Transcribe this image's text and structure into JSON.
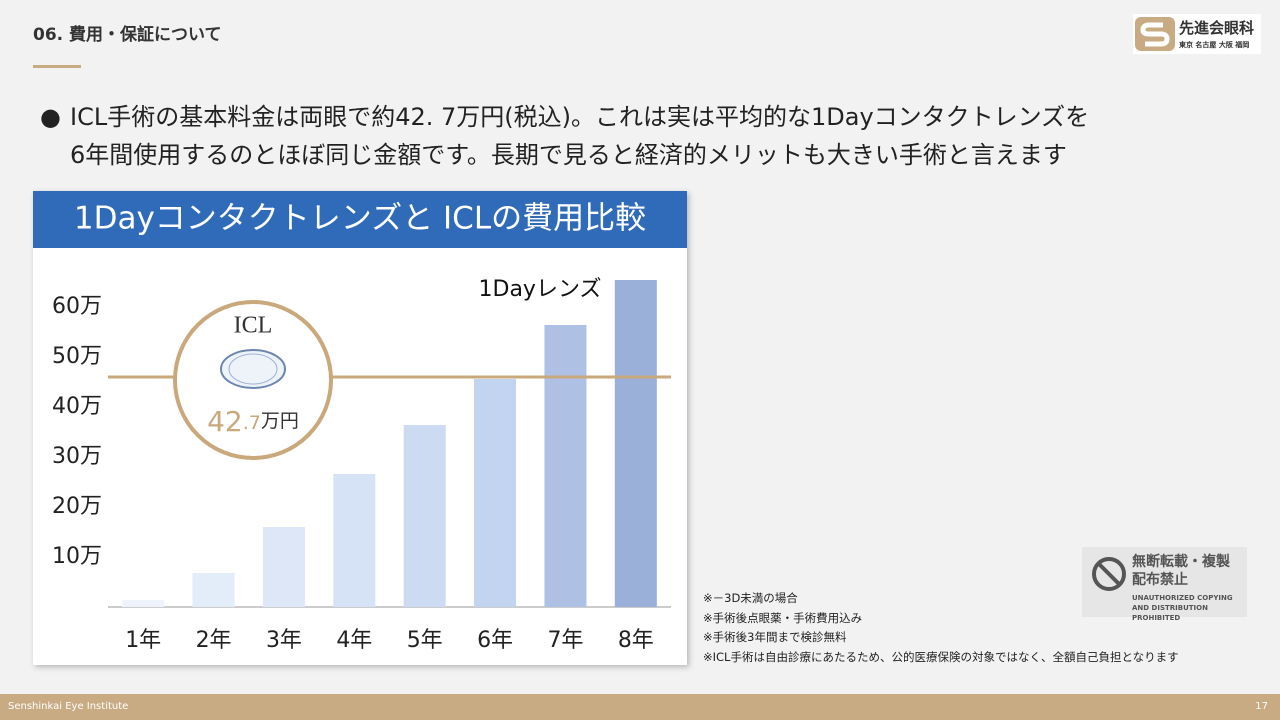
{
  "header": {
    "section": "06. 費用・保証について",
    "logo": "先進会眼科",
    "logo_sub": "東京 名古屋 大阪 福岡"
  },
  "body": {
    "lines": [
      "ICL手術の基本料金は両眼で約42. 7万円(税込)。これは実は平均的な1Dayコンタクトレンズを",
      "6年間使用するのとほぼ同じ金額です。長期で見ると経済的メリットも大きい手術と言えます"
    ]
  },
  "chart_data": {
    "type": "bar",
    "title": "1Dayコンタクトレンズと ICLの費用比較",
    "categories": [
      "1年",
      "2年",
      "3年",
      "4年",
      "5年",
      "6年",
      "7年",
      "8年"
    ],
    "series": [
      {
        "name": "1Dayレンズ",
        "values": [
          14000,
          68000,
          160000,
          266000,
          364000,
          456000,
          564000,
          654000
        ],
        "colors": [
          "#eef3fb",
          "#e3ecf9",
          "#dde7f8",
          "#d6e2f6",
          "#ccdaf2",
          "#c2d4f0",
          "#aec1e4",
          "#9ab0d8"
        ]
      }
    ],
    "ylim": [
      0,
      700000
    ],
    "yticks": [
      {
        "value": 100000,
        "label": "10万"
      },
      {
        "value": 200000,
        "label": "20万"
      },
      {
        "value": 300000,
        "label": "30万"
      },
      {
        "value": 400000,
        "label": "40万"
      },
      {
        "value": 500000,
        "label": "50万"
      },
      {
        "value": 600000,
        "label": "60万"
      }
    ],
    "reference_value": 460000,
    "reference_color": "#c9a87c",
    "icl_label": "ICL",
    "icl_price_parts": [
      "42",
      ".7",
      "万円"
    ]
  },
  "notes": [
    "※－3D未満の場合",
    "※手術後点眼薬・手術費用込み",
    "※手術後3年間まで検診無料",
    "※ICL手術は自由診療にあたるため、公的医療保険の対象ではなく、全額自己負担となります"
  ],
  "badge": {
    "lines": [
      "無断転載・複製",
      "配布禁止"
    ],
    "sub": [
      "UNAUTHORIZED COPYING",
      "AND DISTRIBUTION PROHIBITED"
    ]
  },
  "footer": {
    "org": "Senshinkai Eye Institute",
    "page": "17"
  }
}
